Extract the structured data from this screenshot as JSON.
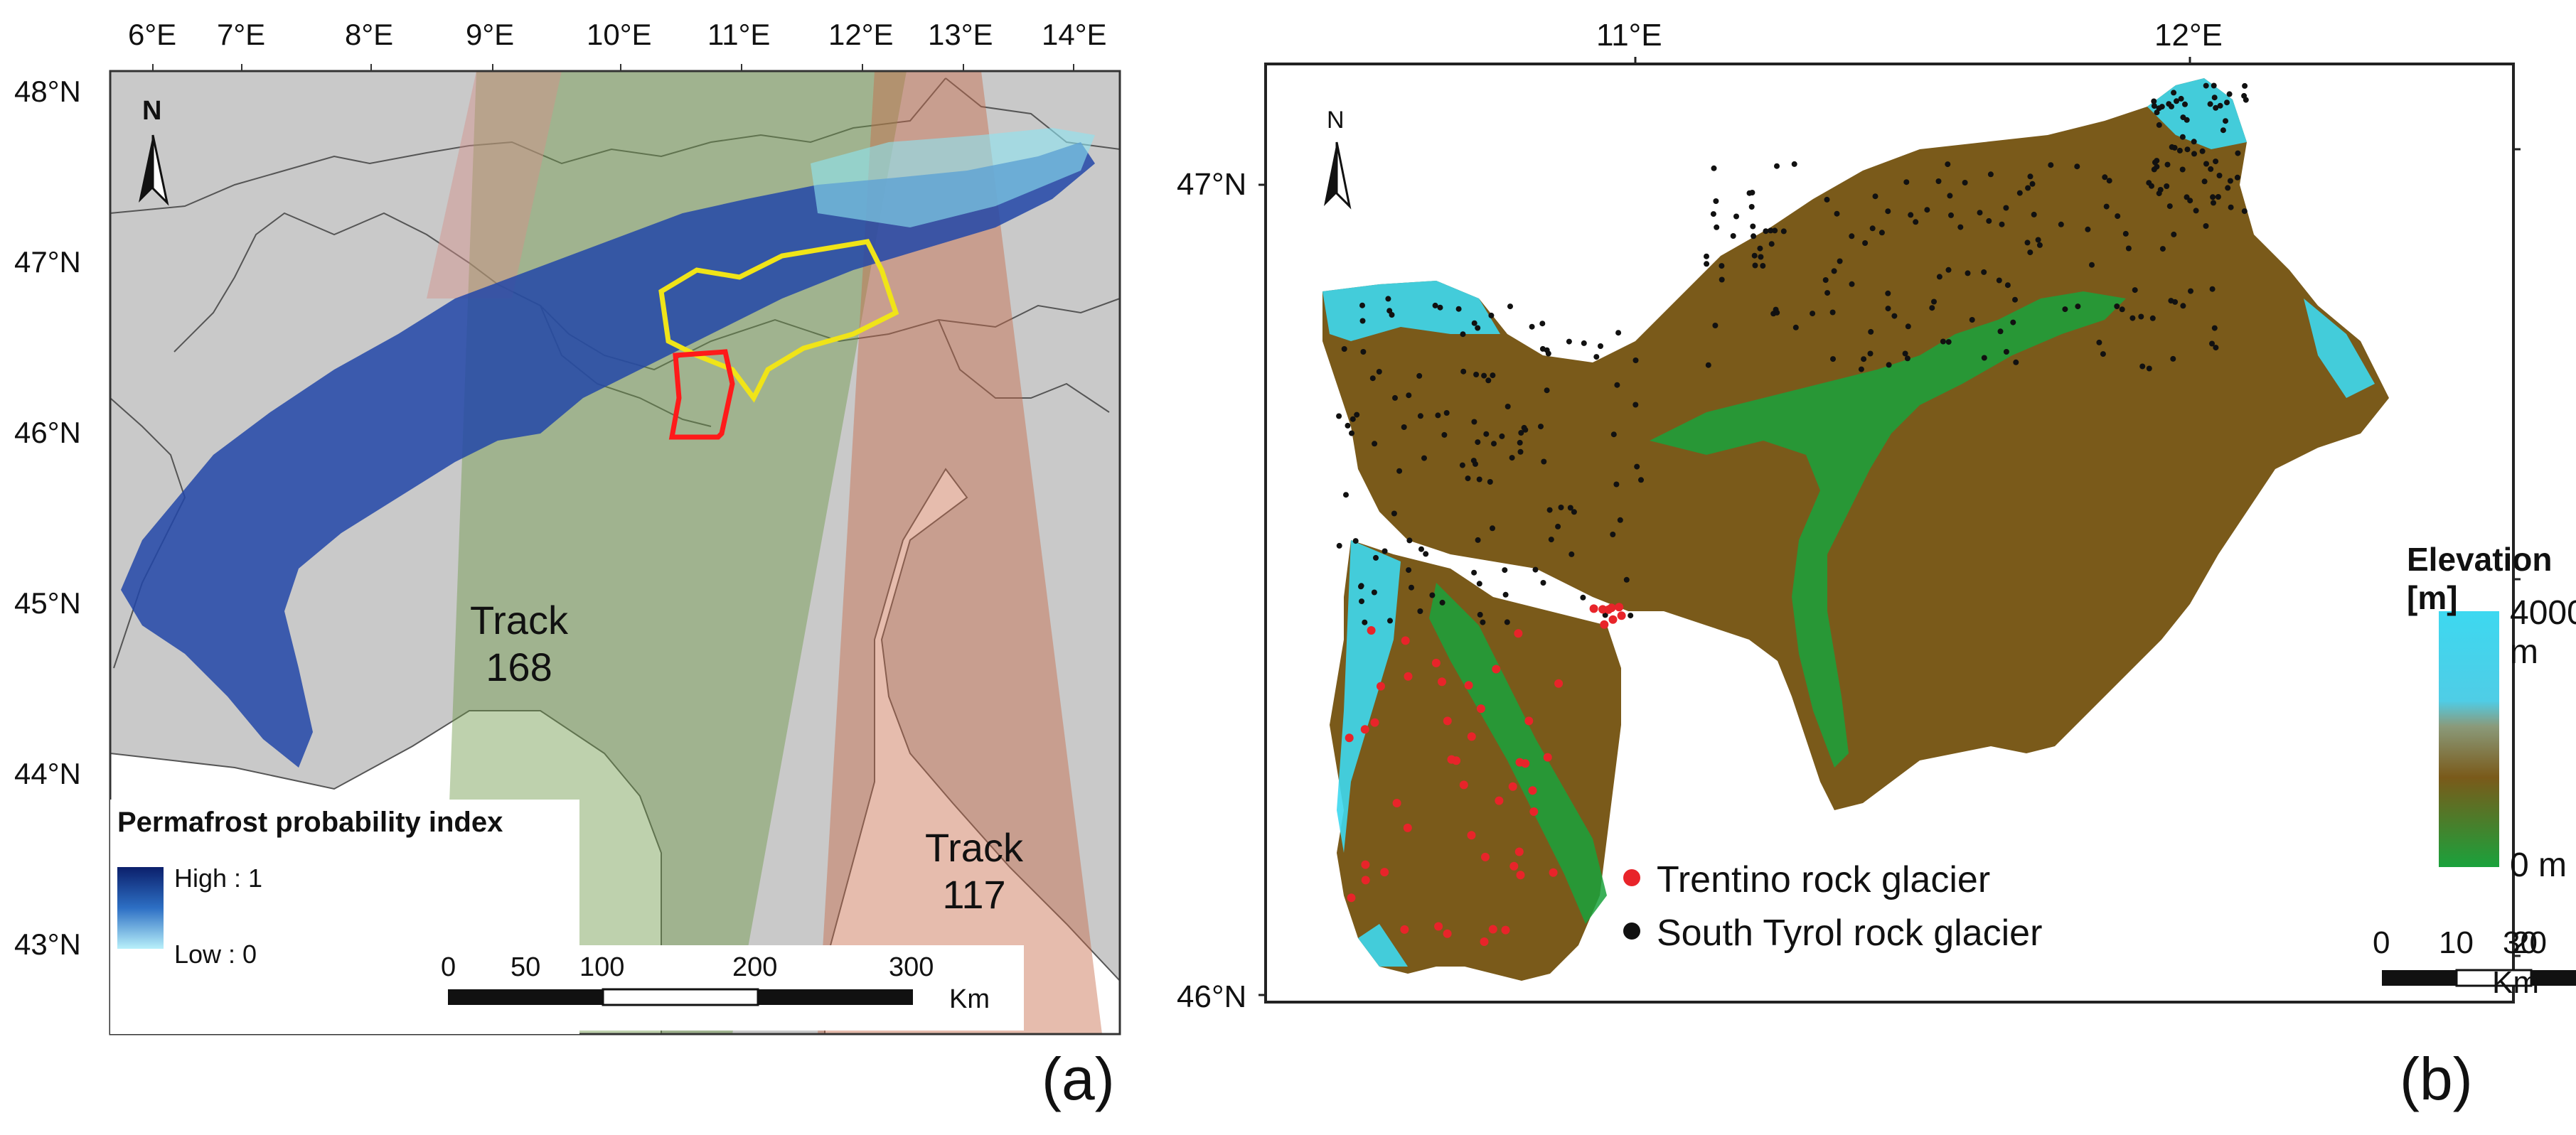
{
  "panel_a": {
    "label": "(a)",
    "lon_ticks": [
      "6°E",
      "7°E",
      "8°E",
      "9°E",
      "10°E",
      "11°E",
      "12°E",
      "13°E",
      "14°E"
    ],
    "lat_ticks": [
      "48°N",
      "47°N",
      "46°N",
      "45°N",
      "44°N",
      "43°N"
    ],
    "north_label": "N",
    "track_168": {
      "line1": "Track",
      "line2": "168"
    },
    "track_117": {
      "line1": "Track",
      "line2": "117"
    },
    "legend": {
      "title": "Permafrost probability index",
      "high": "High : 1",
      "low": "Low : 0"
    },
    "scale": {
      "ticks": [
        "0",
        "50",
        "100",
        "200",
        "300"
      ],
      "unit": "Km"
    },
    "colors": {
      "land": "#c8c8c8",
      "sea": "#ffffff",
      "track168": "#6f9a4a",
      "track117": "#c86a4a",
      "permafrost_high": "#0b1f6b",
      "permafrost_low": "#8ee4f2",
      "study_trentino": "#ff1a1a",
      "study_south_tyrol": "#f0e418"
    }
  },
  "panel_b": {
    "label": "(b)",
    "lon_ticks": [
      "11°E",
      "12°E"
    ],
    "lat_ticks": [
      "47°N",
      "46°N"
    ],
    "north_label": "N",
    "legend_items": [
      {
        "label": "Trentino rock glacier",
        "color": "#e8242a"
      },
      {
        "label": "South Tyrol rock glacier",
        "color": "#111111"
      }
    ],
    "elevation": {
      "title": "Elevation [m]",
      "max": "4000 m",
      "min": "0 m"
    },
    "scale": {
      "ticks": [
        "0",
        "10",
        "20",
        "30"
      ],
      "unit": "Km"
    },
    "colors": {
      "elev_low": "#1aa23c",
      "elev_mid": "#7a5a1a",
      "elev_high": "#3dd8f0"
    }
  }
}
